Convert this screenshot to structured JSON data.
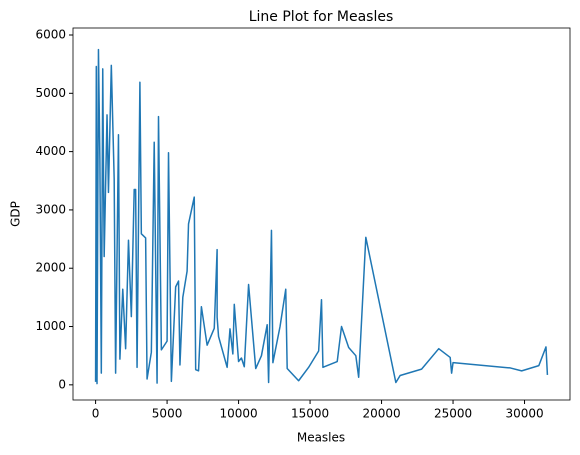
{
  "chart_data": {
    "type": "line",
    "title": "Line Plot for Measles",
    "x_label": "Measles",
    "y_label": "GDP",
    "color": "#1f77b4",
    "x": [
      0,
      50,
      100,
      200,
      300,
      400,
      500,
      600,
      800,
      900,
      1100,
      1300,
      1400,
      1600,
      1700,
      1900,
      2100,
      2300,
      2500,
      2700,
      2800,
      2900,
      3100,
      3200,
      3500,
      3600,
      3900,
      4100,
      4300,
      4400,
      4600,
      5000,
      5100,
      5300,
      5600,
      5800,
      5900,
      6100,
      6400,
      6500,
      6900,
      7000,
      7200,
      7400,
      7800,
      8300,
      8500,
      8500,
      8600,
      9200,
      9400,
      9600,
      9700,
      10000,
      10200,
      10400,
      10700,
      11200,
      11600,
      12000,
      12100,
      12300,
      12400,
      12900,
      13300,
      13400,
      14200,
      14900,
      15600,
      15800,
      15900,
      16900,
      17200,
      17700,
      18200,
      18400,
      18900,
      21000,
      21300,
      22800,
      24000,
      24800,
      24900,
      25000,
      29000,
      29800,
      31000,
      31500,
      31600
    ],
    "values": [
      50,
      5460,
      20,
      5750,
      3870,
      200,
      5420,
      2200,
      4630,
      3300,
      5480,
      3530,
      200,
      4290,
      440,
      1640,
      620,
      2480,
      1170,
      3350,
      3350,
      300,
      5190,
      2590,
      2520,
      100,
      560,
      4160,
      30,
      4600,
      600,
      750,
      3980,
      60,
      1680,
      1780,
      340,
      1500,
      1950,
      2760,
      3220,
      260,
      240,
      1340,
      680,
      970,
      2320,
      1160,
      830,
      300,
      960,
      530,
      1380,
      400,
      460,
      310,
      1720,
      280,
      500,
      1030,
      40,
      2650,
      380,
      1000,
      1640,
      280,
      70,
      300,
      580,
      1460,
      300,
      400,
      1000,
      640,
      500,
      130,
      2530,
      40,
      160,
      270,
      620,
      470,
      200,
      380,
      290,
      240,
      330,
      650,
      170
    ],
    "xlim": [
      -1580,
      33180
    ],
    "ylim": [
      -260,
      6120
    ],
    "xticks": [
      0,
      5000,
      10000,
      15000,
      20000,
      25000,
      30000
    ],
    "yticks": [
      0,
      1000,
      2000,
      3000,
      4000,
      5000,
      6000
    ]
  }
}
